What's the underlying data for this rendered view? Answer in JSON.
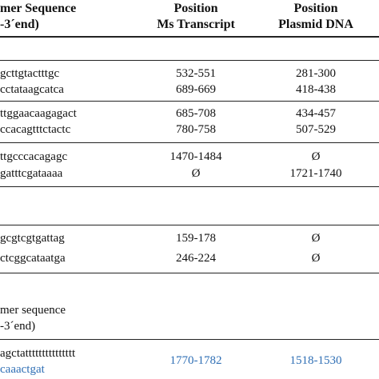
{
  "header": {
    "seq_line1": "mer Sequence",
    "seq_line2": "-3´end)",
    "pos_ms_line1": "Position",
    "pos_ms_line2": "Ms Transcript",
    "pos_pl_line1": "Position",
    "pos_pl_line2": "Plasmid DNA"
  },
  "rows": [
    {
      "seq": "gcttgtactttgc",
      "ms": "532-551",
      "plasmid": "281-300"
    },
    {
      "seq": "cctataagcatca",
      "ms": "689-669",
      "plasmid": "418-438"
    },
    {
      "seq": "ttggaacaagagact",
      "ms": "685-708",
      "plasmid": "434-457"
    },
    {
      "seq": "ccacagtttctactc",
      "ms": "780-758",
      "plasmid": "507-529"
    },
    {
      "seq": "ttgcccacagagc",
      "ms": "1470-1484",
      "plasmid": "Ø"
    },
    {
      "seq": "gatttcgataaaa",
      "ms": "Ø",
      "plasmid": "1721-1740"
    },
    {
      "seq": "gcgtcgtgattag",
      "ms": "159-178",
      "plasmid": "Ø"
    },
    {
      "seq": "ctcggcataatga",
      "ms": "246-224",
      "plasmid": "Ø"
    }
  ],
  "subheader": {
    "line1": "mer sequence",
    "line2": "-3´end)"
  },
  "last": {
    "seq_line1": "agctattttttttttttttt",
    "seq_line2": "caaactgat",
    "ms": "1770-1782",
    "plasmid": "1518-1530"
  },
  "colors": {
    "highlight_blue": "#2f6fb5"
  }
}
